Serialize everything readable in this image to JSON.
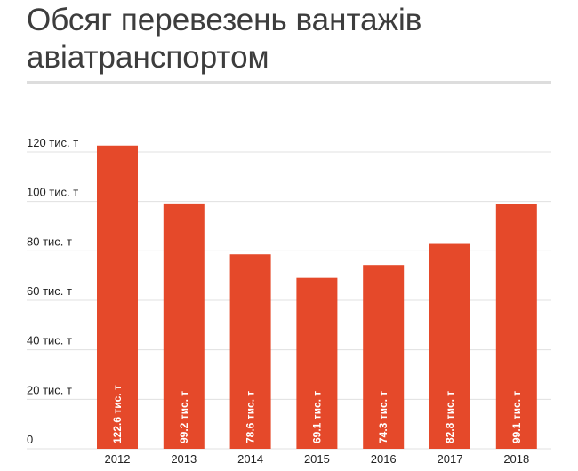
{
  "title_line1": "Обсяг перевезень вантажів",
  "title_line2": "авіатранспортом",
  "chart_data": {
    "type": "bar",
    "title": "Обсяг перевезень вантажів авіатранспортом",
    "categories": [
      "2012",
      "2013",
      "2014",
      "2015",
      "2016",
      "2017",
      "2018"
    ],
    "values": [
      122.6,
      99.2,
      78.6,
      69.1,
      74.3,
      82.8,
      99.1
    ],
    "data_labels": [
      "122.6 тис. т",
      "99.2 тис. т",
      "78.6 тис. т",
      "69.1 тис. т",
      "74.3 тис. т",
      "82.8 тис. т",
      "99.1 тис. т"
    ],
    "y_ticks": [
      0,
      20,
      40,
      60,
      80,
      100,
      120
    ],
    "y_tick_labels": [
      "0",
      "20 тис. т",
      "40 тис. т",
      "60 тис. т",
      "80 тис. т",
      "100 тис. т",
      "120 тис. т"
    ],
    "ylim": [
      0,
      120
    ],
    "grid": true,
    "bar_color": "#e5492a",
    "grid_color": "#e0e0e0",
    "xlabel": "",
    "ylabel": ""
  }
}
